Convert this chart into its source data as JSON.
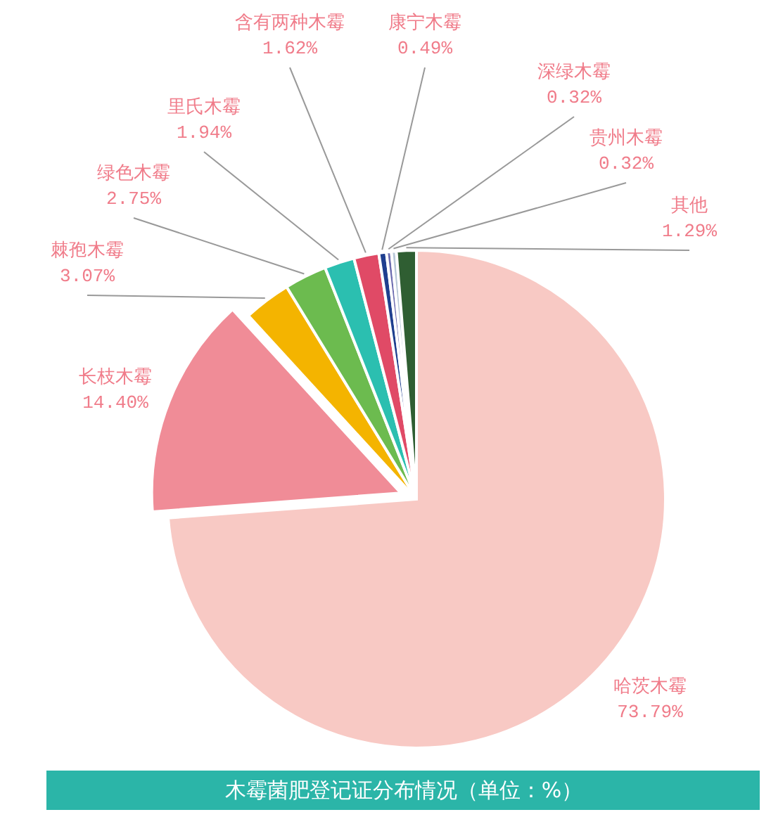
{
  "chart_data": {
    "type": "pie",
    "title": "木霉菌肥登记证分布情况（单位：%）",
    "categories": [
      "哈茨木霉",
      "长枝木霉",
      "棘孢木霉",
      "绿色木霉",
      "里氏木霉",
      "含有两种木霉",
      "康宁木霉",
      "深绿木霉",
      "贵州木霉",
      "其他"
    ],
    "values": [
      73.79,
      14.4,
      3.07,
      2.75,
      1.94,
      1.62,
      0.49,
      0.32,
      0.32,
      1.29
    ],
    "value_labels": [
      "73.79%",
      "14.40%",
      "3.07%",
      "2.75%",
      "1.94%",
      "1.62%",
      "0.49%",
      "0.32%",
      "0.32%",
      "1.29%"
    ],
    "colors": [
      "#f8c9c4",
      "#f08c97",
      "#f4b400",
      "#6cbb4f",
      "#2bbfb0",
      "#e04a66",
      "#1f3f8f",
      "#6d6db0",
      "#b8c8d8",
      "#2f5e32"
    ]
  }
}
